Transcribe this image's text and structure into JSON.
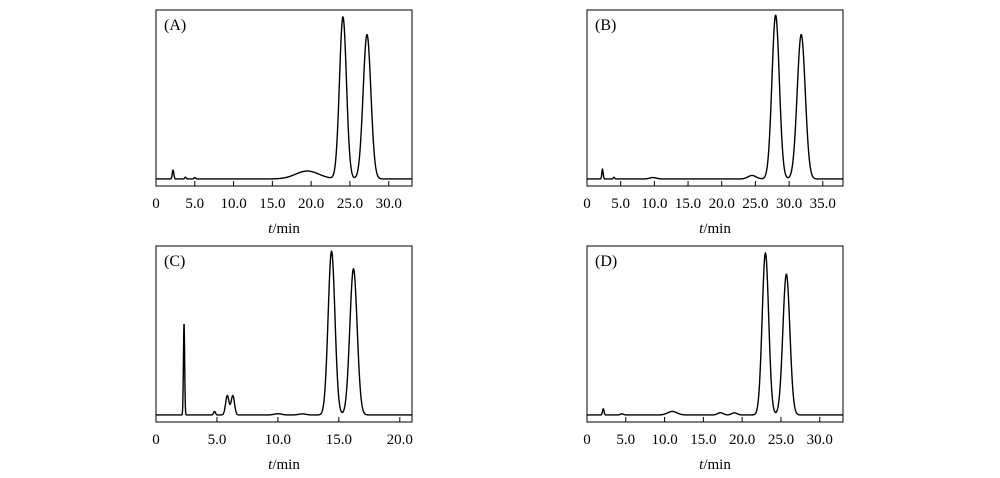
{
  "chart_data": [
    {
      "type": "line",
      "panel_label": "(A)",
      "xlabel_var": "t",
      "xlabel_unit": "/min",
      "xlim": [
        0,
        33
      ],
      "xticks": [
        0,
        5,
        10,
        15,
        20,
        25,
        30
      ],
      "xtick_labels": [
        "0",
        "5.0",
        "10.0",
        "15.0",
        "20.0",
        "25.0",
        "30.0"
      ],
      "baseline": 0.04,
      "peaks": [
        {
          "center": 2.2,
          "height": 0.05,
          "width": 0.1
        },
        {
          "center": 3.8,
          "height": 0.01,
          "width": 0.1
        },
        {
          "center": 5.0,
          "height": 0.008,
          "width": 0.1
        },
        {
          "center": 19.5,
          "height": 0.045,
          "width": 1.5
        },
        {
          "center": 24.1,
          "height": 0.92,
          "width": 0.45
        },
        {
          "center": 27.2,
          "height": 0.82,
          "width": 0.5
        }
      ]
    },
    {
      "type": "line",
      "panel_label": "(B)",
      "xlabel_var": "t",
      "xlabel_unit": "/min",
      "xlim": [
        0,
        38
      ],
      "xticks": [
        0,
        5,
        10,
        15,
        20,
        25,
        30,
        35
      ],
      "xtick_labels": [
        "0",
        "5.0",
        "10.0",
        "15.0",
        "20.0",
        "25.0",
        "30.0",
        "35.0"
      ],
      "baseline": 0.04,
      "peaks": [
        {
          "center": 2.3,
          "height": 0.055,
          "width": 0.1
        },
        {
          "center": 4.0,
          "height": 0.01,
          "width": 0.1
        },
        {
          "center": 9.8,
          "height": 0.008,
          "width": 0.5
        },
        {
          "center": 24.5,
          "height": 0.02,
          "width": 0.6
        },
        {
          "center": 28.0,
          "height": 0.93,
          "width": 0.55
        },
        {
          "center": 31.8,
          "height": 0.82,
          "width": 0.6
        }
      ]
    },
    {
      "type": "line",
      "panel_label": "(C)",
      "xlabel_var": "t",
      "xlabel_unit": "/min",
      "xlim": [
        0,
        21
      ],
      "xticks": [
        0,
        5,
        10,
        15,
        20
      ],
      "xtick_labels": [
        "0",
        "5.0",
        "10.0",
        "15.0",
        "20.0"
      ],
      "baseline": 0.04,
      "peaks": [
        {
          "center": 2.3,
          "height": 0.52,
          "width": 0.05
        },
        {
          "center": 4.8,
          "height": 0.02,
          "width": 0.08
        },
        {
          "center": 5.85,
          "height": 0.11,
          "width": 0.14
        },
        {
          "center": 6.3,
          "height": 0.11,
          "width": 0.14
        },
        {
          "center": 10.0,
          "height": 0.007,
          "width": 0.3
        },
        {
          "center": 12.0,
          "height": 0.006,
          "width": 0.3
        },
        {
          "center": 14.4,
          "height": 0.93,
          "width": 0.28
        },
        {
          "center": 16.2,
          "height": 0.83,
          "width": 0.3
        }
      ]
    },
    {
      "type": "line",
      "panel_label": "(D)",
      "xlabel_var": "t",
      "xlabel_unit": "/min",
      "xlim": [
        0,
        33
      ],
      "xticks": [
        0,
        5,
        10,
        15,
        20,
        25,
        30
      ],
      "xtick_labels": [
        "0",
        "5.0",
        "10.0",
        "15.0",
        "20.0",
        "25.0",
        "30.0"
      ],
      "baseline": 0.04,
      "peaks": [
        {
          "center": 2.1,
          "height": 0.035,
          "width": 0.1
        },
        {
          "center": 4.5,
          "height": 0.006,
          "width": 0.2
        },
        {
          "center": 11.0,
          "height": 0.02,
          "width": 0.6
        },
        {
          "center": 17.2,
          "height": 0.013,
          "width": 0.35
        },
        {
          "center": 19.0,
          "height": 0.012,
          "width": 0.35
        },
        {
          "center": 23.0,
          "height": 0.92,
          "width": 0.42
        },
        {
          "center": 25.7,
          "height": 0.8,
          "width": 0.45
        }
      ]
    }
  ]
}
